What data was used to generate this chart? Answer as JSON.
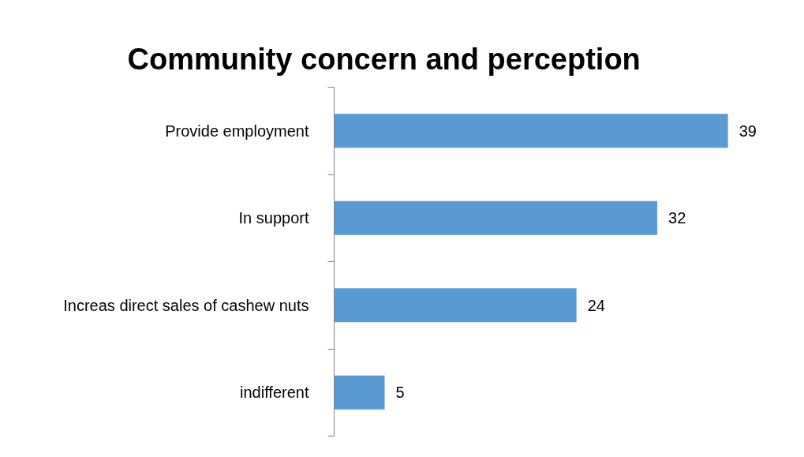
{
  "chart_data": {
    "type": "bar",
    "orientation": "horizontal",
    "title": "Community concern and perception",
    "categories": [
      "Provide employment",
      "In support",
      "Increas direct sales of cashew nuts",
      "indifferent"
    ],
    "values": [
      39,
      32,
      24,
      5
    ],
    "color": "#5b9bd5",
    "data_labels": true,
    "grid": false
  }
}
